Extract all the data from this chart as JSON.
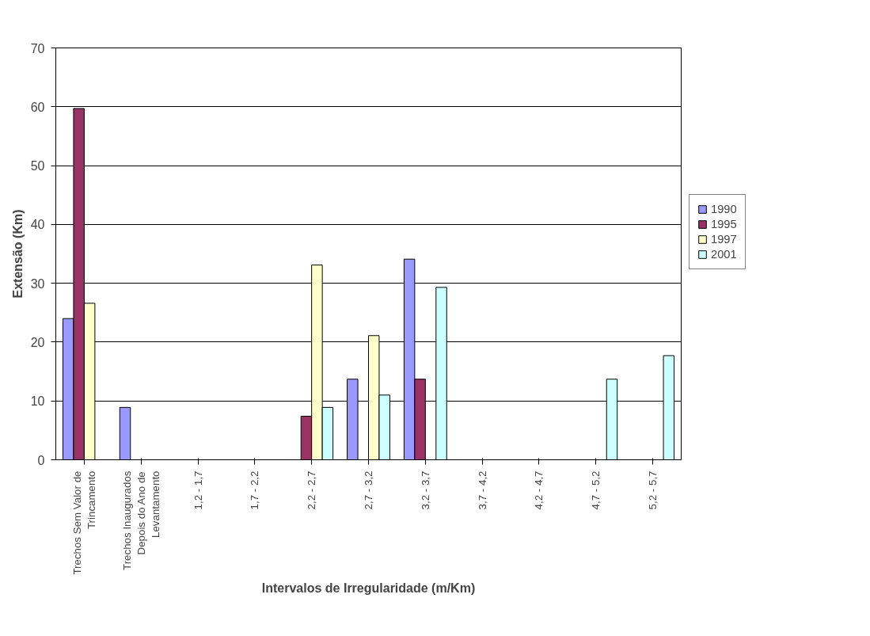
{
  "chart_data": {
    "type": "bar",
    "xlabel": "Intervalos de Irregularidade (m/Km)",
    "ylabel": "Extensão (Km)",
    "categories": [
      "Trechos Sem Valor de Trincamento",
      "Trechos Inaugurados Depois do Ano de Levantamento",
      "1,2 - 1,7",
      "1,7 - 2,2",
      "2,2 - 2,7",
      "2,7 - 3,2",
      "3,2 - 3,7",
      "3,7 - 4,2",
      "4,2 - 4,7",
      "4,7 - 5,2",
      "5,2 - 5,7"
    ],
    "series": [
      {
        "name": "1990",
        "color": "#9999ff",
        "values": [
          24,
          8.9,
          null,
          null,
          null,
          13.7,
          34.1,
          null,
          null,
          null,
          null
        ]
      },
      {
        "name": "1995",
        "color": "#993366",
        "values": [
          59.7,
          null,
          null,
          null,
          7.4,
          null,
          13.7,
          null,
          null,
          null,
          null
        ]
      },
      {
        "name": "1997",
        "color": "#ffffcc",
        "values": [
          26.6,
          null,
          null,
          null,
          33.1,
          21.1,
          null,
          null,
          null,
          null,
          null
        ]
      },
      {
        "name": "2001",
        "color": "#ccffff",
        "values": [
          null,
          null,
          null,
          null,
          8.9,
          11.0,
          29.3,
          null,
          null,
          13.7,
          17.7
        ]
      }
    ],
    "ylim": [
      0,
      70
    ],
    "yticks": [
      0,
      10,
      20,
      30,
      40,
      50,
      60,
      70
    ],
    "grid": "y",
    "legend": "right"
  }
}
